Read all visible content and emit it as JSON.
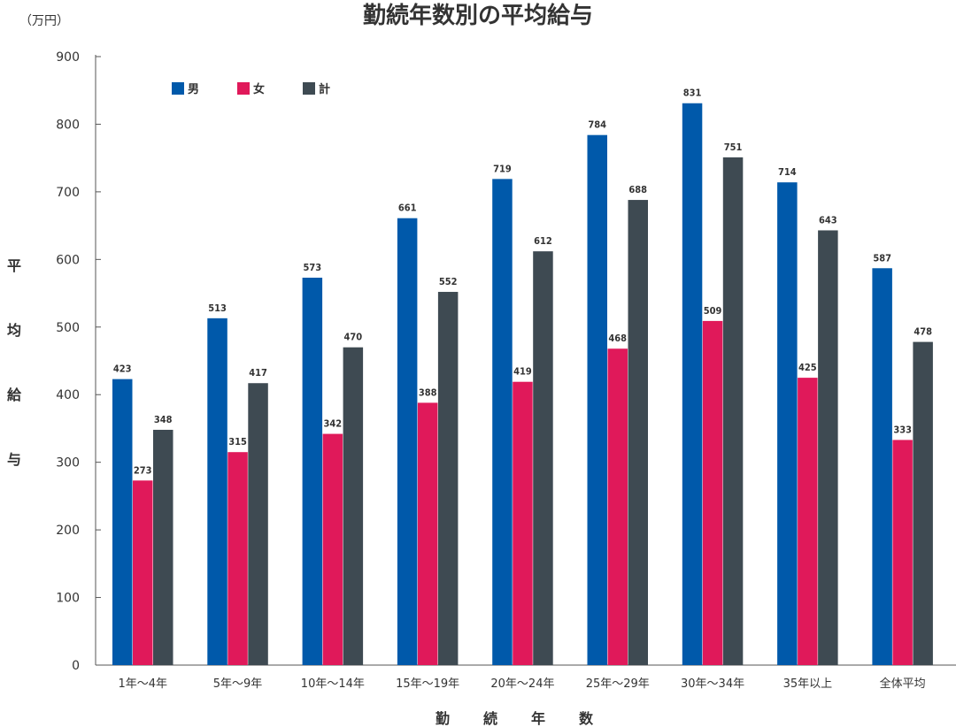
{
  "chart_data": {
    "type": "bar",
    "title": "勤続年数別の平均給与",
    "unit_label": "（万円）",
    "xlabel": "勤続年数",
    "ylabel": "平均給与",
    "ylim": [
      0,
      900
    ],
    "yticks": [
      0,
      100,
      200,
      300,
      400,
      500,
      600,
      700,
      800,
      900
    ],
    "grid": false,
    "legend_position": "top-left",
    "categories": [
      "1年～4年",
      "5年～9年",
      "10年～14年",
      "15年～19年",
      "20年～24年",
      "25年～29年",
      "30年～34年",
      "35年以上",
      "全体平均"
    ],
    "series": [
      {
        "name": "男",
        "color": "#0059aa",
        "values": [
          423,
          513,
          573,
          661,
          719,
          784,
          831,
          714,
          587
        ]
      },
      {
        "name": "女",
        "color": "#e0195a",
        "values": [
          273,
          315,
          342,
          388,
          419,
          468,
          509,
          425,
          333
        ]
      },
      {
        "name": "計",
        "color": "#3e4a52",
        "values": [
          348,
          417,
          470,
          552,
          612,
          688,
          751,
          643,
          478
        ]
      }
    ]
  }
}
